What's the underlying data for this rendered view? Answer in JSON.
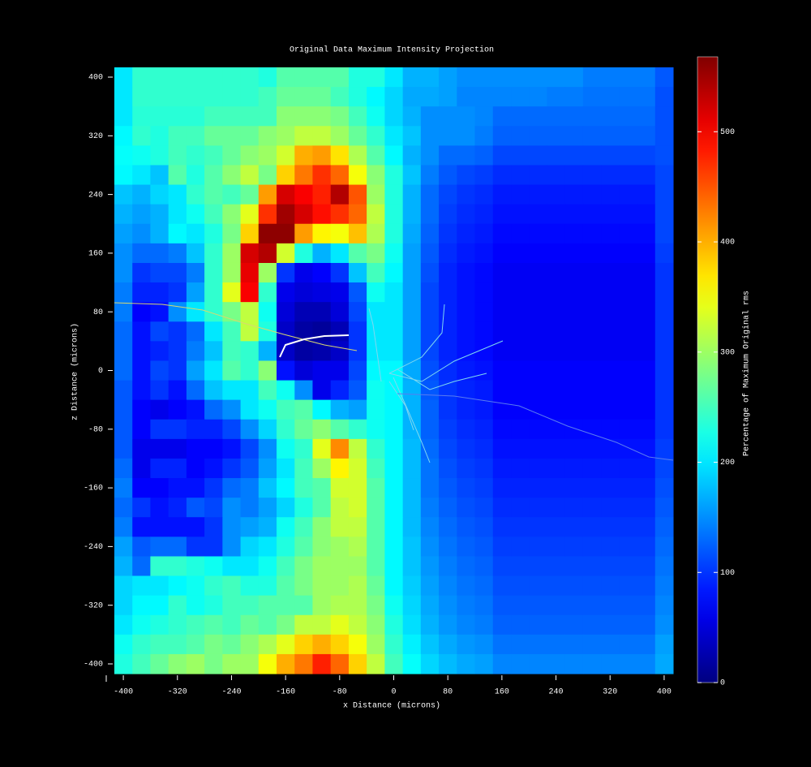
{
  "chart_data": {
    "type": "heatmap",
    "title": "Original Data Maximum Intensity Projection",
    "xlabel": "x Distance (microns)",
    "ylabel": "z Distance (microns)",
    "colorbar_label": "Percentage of Maximum Original rms",
    "colormap": "jet",
    "x": [
      -400,
      -373.3,
      -346.7,
      -320,
      -293.3,
      -266.7,
      -240,
      -213.3,
      -186.7,
      -160,
      -133.3,
      -106.7,
      -80,
      -53.3,
      -26.7,
      0,
      26.7,
      53.3,
      80,
      106.7,
      133.3,
      160,
      186.7,
      213.3,
      240,
      266.7,
      293.3,
      320,
      346.7,
      373.3,
      400
    ],
    "y": [
      400,
      373.3,
      346.7,
      320,
      293.3,
      266.7,
      240,
      213.3,
      186.7,
      160,
      133.3,
      106.7,
      80,
      53.3,
      26.7,
      0,
      -26.7,
      -53.3,
      -80,
      -106.7,
      -133.3,
      -160,
      -186.7,
      -213.3,
      -240,
      -266.7,
      -293.3,
      -320,
      -346.7,
      -373.3,
      -400
    ],
    "z": [
      [
        200,
        240,
        240,
        240,
        240,
        240,
        240,
        240,
        230,
        260,
        260,
        260,
        260,
        230,
        230,
        200,
        170,
        170,
        160,
        150,
        150,
        150,
        150,
        150,
        150,
        150,
        140,
        140,
        140,
        140,
        120
      ],
      [
        200,
        240,
        240,
        240,
        240,
        240,
        240,
        240,
        250,
        270,
        270,
        270,
        250,
        230,
        210,
        190,
        165,
        165,
        160,
        145,
        145,
        145,
        145,
        145,
        140,
        140,
        135,
        135,
        135,
        135,
        115
      ],
      [
        200,
        235,
        235,
        235,
        235,
        250,
        250,
        250,
        250,
        290,
        290,
        290,
        280,
        250,
        220,
        190,
        170,
        150,
        150,
        150,
        145,
        130,
        130,
        130,
        130,
        130,
        130,
        130,
        130,
        130,
        115
      ],
      [
        210,
        240,
        230,
        250,
        250,
        270,
        270,
        270,
        290,
        300,
        320,
        320,
        300,
        270,
        240,
        200,
        180,
        150,
        150,
        150,
        140,
        125,
        125,
        125,
        125,
        125,
        125,
        125,
        125,
        125,
        115
      ],
      [
        215,
        220,
        230,
        250,
        240,
        250,
        270,
        290,
        300,
        330,
        400,
        410,
        370,
        310,
        260,
        210,
        170,
        150,
        130,
        130,
        125,
        110,
        110,
        110,
        110,
        110,
        110,
        110,
        110,
        110,
        115
      ],
      [
        210,
        200,
        180,
        260,
        230,
        260,
        290,
        320,
        280,
        380,
        430,
        470,
        440,
        350,
        290,
        230,
        180,
        140,
        120,
        110,
        105,
        95,
        95,
        95,
        95,
        95,
        95,
        95,
        95,
        95,
        110
      ],
      [
        180,
        170,
        190,
        200,
        240,
        260,
        250,
        270,
        410,
        520,
        500,
        480,
        540,
        450,
        300,
        230,
        170,
        130,
        110,
        100,
        95,
        85,
        85,
        85,
        85,
        85,
        85,
        85,
        85,
        85,
        110
      ],
      [
        170,
        160,
        170,
        200,
        220,
        250,
        290,
        340,
        470,
        550,
        520,
        490,
        470,
        440,
        320,
        230,
        170,
        130,
        105,
        95,
        90,
        80,
        80,
        80,
        80,
        80,
        80,
        80,
        80,
        80,
        110
      ],
      [
        160,
        150,
        170,
        210,
        200,
        230,
        280,
        380,
        560,
        560,
        410,
        360,
        350,
        390,
        310,
        230,
        165,
        125,
        100,
        90,
        85,
        75,
        75,
        75,
        75,
        75,
        75,
        75,
        75,
        75,
        110
      ],
      [
        150,
        130,
        130,
        140,
        180,
        240,
        300,
        520,
        540,
        330,
        230,
        170,
        200,
        260,
        280,
        220,
        160,
        120,
        95,
        85,
        80,
        70,
        70,
        70,
        70,
        70,
        70,
        70,
        70,
        70,
        105
      ],
      [
        150,
        100,
        110,
        110,
        140,
        240,
        300,
        510,
        300,
        100,
        60,
        70,
        100,
        180,
        250,
        210,
        160,
        115,
        90,
        80,
        75,
        65,
        65,
        65,
        65,
        65,
        65,
        65,
        65,
        65,
        100
      ],
      [
        140,
        90,
        90,
        100,
        160,
        240,
        340,
        500,
        240,
        60,
        50,
        55,
        60,
        120,
        220,
        200,
        160,
        110,
        90,
        80,
        75,
        65,
        65,
        65,
        65,
        65,
        65,
        65,
        65,
        65,
        100
      ],
      [
        140,
        70,
        80,
        150,
        200,
        240,
        280,
        320,
        220,
        50,
        30,
        30,
        50,
        110,
        200,
        200,
        160,
        110,
        90,
        80,
        75,
        65,
        65,
        65,
        65,
        65,
        65,
        65,
        65,
        65,
        100
      ],
      [
        130,
        80,
        110,
        100,
        130,
        200,
        250,
        320,
        230,
        40,
        20,
        15,
        30,
        100,
        200,
        200,
        160,
        110,
        90,
        80,
        75,
        65,
        65,
        65,
        65,
        65,
        65,
        65,
        65,
        65,
        100
      ],
      [
        130,
        80,
        90,
        100,
        140,
        180,
        250,
        240,
        170,
        40,
        20,
        25,
        40,
        100,
        200,
        200,
        160,
        110,
        90,
        80,
        75,
        65,
        65,
        65,
        65,
        65,
        65,
        65,
        65,
        65,
        100
      ],
      [
        130,
        80,
        110,
        100,
        160,
        200,
        260,
        240,
        290,
        80,
        50,
        60,
        60,
        110,
        210,
        210,
        165,
        115,
        95,
        85,
        80,
        70,
        70,
        70,
        70,
        70,
        70,
        70,
        70,
        70,
        100
      ],
      [
        120,
        80,
        100,
        80,
        130,
        180,
        200,
        200,
        250,
        220,
        150,
        60,
        90,
        120,
        220,
        210,
        170,
        120,
        100,
        90,
        85,
        70,
        70,
        70,
        70,
        70,
        70,
        70,
        70,
        70,
        100
      ],
      [
        120,
        70,
        60,
        70,
        80,
        130,
        150,
        200,
        220,
        250,
        260,
        210,
        170,
        160,
        220,
        210,
        170,
        125,
        100,
        90,
        85,
        70,
        70,
        70,
        70,
        70,
        70,
        70,
        70,
        70,
        100
      ],
      [
        120,
        70,
        100,
        100,
        90,
        90,
        110,
        150,
        190,
        240,
        270,
        290,
        260,
        240,
        220,
        210,
        170,
        125,
        105,
        95,
        90,
        75,
        75,
        75,
        75,
        75,
        75,
        75,
        75,
        75,
        100
      ],
      [
        120,
        60,
        60,
        60,
        70,
        70,
        80,
        110,
        150,
        220,
        240,
        340,
        420,
        320,
        240,
        210,
        175,
        130,
        110,
        100,
        95,
        80,
        80,
        80,
        80,
        80,
        80,
        80,
        80,
        80,
        105
      ],
      [
        130,
        60,
        90,
        90,
        70,
        80,
        100,
        120,
        160,
        200,
        250,
        300,
        360,
        330,
        250,
        210,
        175,
        135,
        115,
        105,
        100,
        85,
        85,
        85,
        85,
        85,
        85,
        85,
        85,
        85,
        110
      ],
      [
        140,
        70,
        70,
        80,
        80,
        100,
        130,
        140,
        180,
        210,
        250,
        260,
        330,
        330,
        260,
        210,
        175,
        135,
        120,
        110,
        105,
        90,
        90,
        90,
        90,
        90,
        90,
        90,
        90,
        90,
        115
      ],
      [
        130,
        100,
        80,
        90,
        120,
        110,
        150,
        140,
        160,
        190,
        230,
        260,
        320,
        330,
        260,
        210,
        175,
        140,
        125,
        115,
        110,
        95,
        95,
        95,
        95,
        95,
        95,
        95,
        95,
        95,
        120
      ],
      [
        140,
        80,
        80,
        80,
        80,
        100,
        150,
        160,
        170,
        220,
        250,
        290,
        320,
        320,
        260,
        210,
        175,
        145,
        130,
        120,
        115,
        100,
        100,
        100,
        100,
        100,
        100,
        100,
        100,
        100,
        125
      ],
      [
        160,
        120,
        130,
        130,
        100,
        100,
        150,
        190,
        200,
        230,
        260,
        290,
        300,
        310,
        260,
        210,
        180,
        150,
        135,
        125,
        120,
        105,
        105,
        105,
        105,
        105,
        105,
        105,
        105,
        105,
        130
      ],
      [
        170,
        130,
        240,
        240,
        230,
        220,
        200,
        200,
        220,
        250,
        280,
        300,
        300,
        300,
        260,
        210,
        180,
        155,
        140,
        130,
        125,
        110,
        110,
        110,
        110,
        110,
        110,
        110,
        110,
        110,
        135
      ],
      [
        190,
        200,
        200,
        210,
        220,
        240,
        250,
        230,
        230,
        260,
        280,
        300,
        300,
        310,
        270,
        210,
        185,
        160,
        145,
        135,
        130,
        115,
        115,
        115,
        115,
        115,
        115,
        115,
        115,
        115,
        140
      ],
      [
        190,
        210,
        210,
        240,
        220,
        230,
        250,
        250,
        260,
        260,
        260,
        300,
        310,
        310,
        280,
        220,
        190,
        165,
        150,
        140,
        135,
        120,
        120,
        120,
        120,
        120,
        120,
        120,
        120,
        120,
        145
      ],
      [
        200,
        220,
        230,
        240,
        250,
        260,
        250,
        270,
        260,
        280,
        320,
        320,
        340,
        320,
        290,
        230,
        195,
        170,
        155,
        145,
        140,
        125,
        125,
        125,
        125,
        125,
        125,
        125,
        125,
        125,
        150
      ],
      [
        220,
        240,
        250,
        250,
        260,
        280,
        270,
        290,
        310,
        340,
        380,
        400,
        380,
        350,
        300,
        240,
        205,
        180,
        165,
        155,
        150,
        135,
        135,
        135,
        135,
        135,
        135,
        135,
        135,
        135,
        160
      ],
      [
        230,
        250,
        270,
        290,
        300,
        280,
        300,
        300,
        350,
        400,
        430,
        480,
        440,
        380,
        320,
        250,
        215,
        190,
        175,
        165,
        160,
        145,
        145,
        145,
        145,
        145,
        145,
        145,
        145,
        145,
        165
      ]
    ],
    "xlim": [
      -413.3,
      413.3
    ],
    "ylim": [
      -413.3,
      413.3
    ],
    "xticks": [
      -400,
      -320,
      -240,
      -160,
      -80,
      0,
      80,
      160,
      240,
      320,
      400
    ],
    "yticks": [
      -400,
      -320,
      -240,
      -160,
      -80,
      0,
      80,
      160,
      240,
      320,
      400
    ],
    "clim": [
      0,
      568
    ],
    "cticks": [
      0,
      100,
      200,
      300,
      400,
      500
    ]
  }
}
